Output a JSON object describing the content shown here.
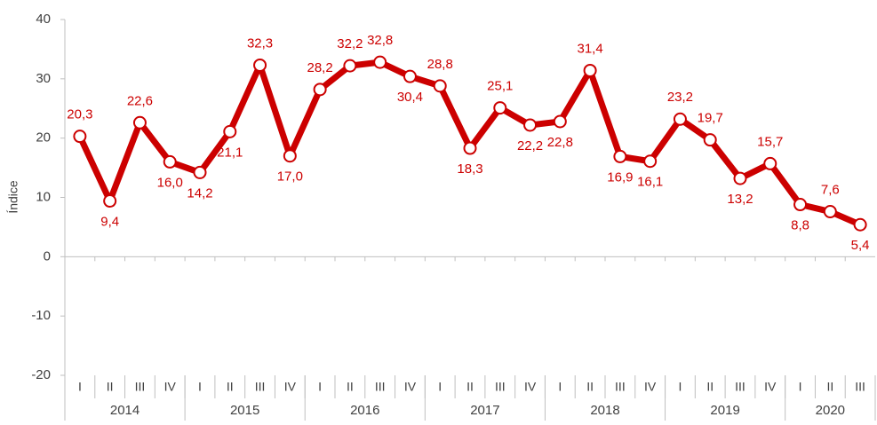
{
  "chart_data": {
    "type": "line",
    "y_label": "Índice",
    "categories": [
      "I",
      "II",
      "III",
      "IV",
      "I",
      "II",
      "III",
      "IV",
      "I",
      "II",
      "III",
      "IV",
      "I",
      "II",
      "III",
      "IV",
      "I",
      "II",
      "III",
      "IV",
      "I",
      "II",
      "III",
      "IV",
      "I",
      "II",
      "III"
    ],
    "groups": [
      {
        "label": "2014",
        "count": 4
      },
      {
        "label": "2015",
        "count": 4
      },
      {
        "label": "2016",
        "count": 4
      },
      {
        "label": "2017",
        "count": 4
      },
      {
        "label": "2018",
        "count": 4
      },
      {
        "label": "2019",
        "count": 4
      },
      {
        "label": "2020",
        "count": 3
      }
    ],
    "series": [
      {
        "name": "Índice",
        "color": "#cc0000",
        "values": [
          20.3,
          9.4,
          22.6,
          16.0,
          14.2,
          21.1,
          32.3,
          17.0,
          28.2,
          32.2,
          32.8,
          30.4,
          28.8,
          18.3,
          25.1,
          22.2,
          22.8,
          31.4,
          16.9,
          16.1,
          23.2,
          19.7,
          13.2,
          15.7,
          8.8,
          7.6,
          5.4
        ],
        "value_labels": [
          "20,3",
          "9,4",
          "22,6",
          "16,0",
          "14,2",
          "21,1",
          "32,3",
          "17,0",
          "28,2",
          "32,2",
          "32,8",
          "30,4",
          "28,8",
          "18,3",
          "25,1",
          "22,2",
          "22,8",
          "31,4",
          "16,9",
          "16,1",
          "23,2",
          "19,7",
          "13,2",
          "15,7",
          "8,8",
          "7,6",
          "5,4"
        ]
      }
    ],
    "ylim": [
      -20,
      40
    ],
    "yticks": [
      -20,
      -10,
      0,
      10,
      20,
      30,
      40
    ],
    "grid": false
  }
}
